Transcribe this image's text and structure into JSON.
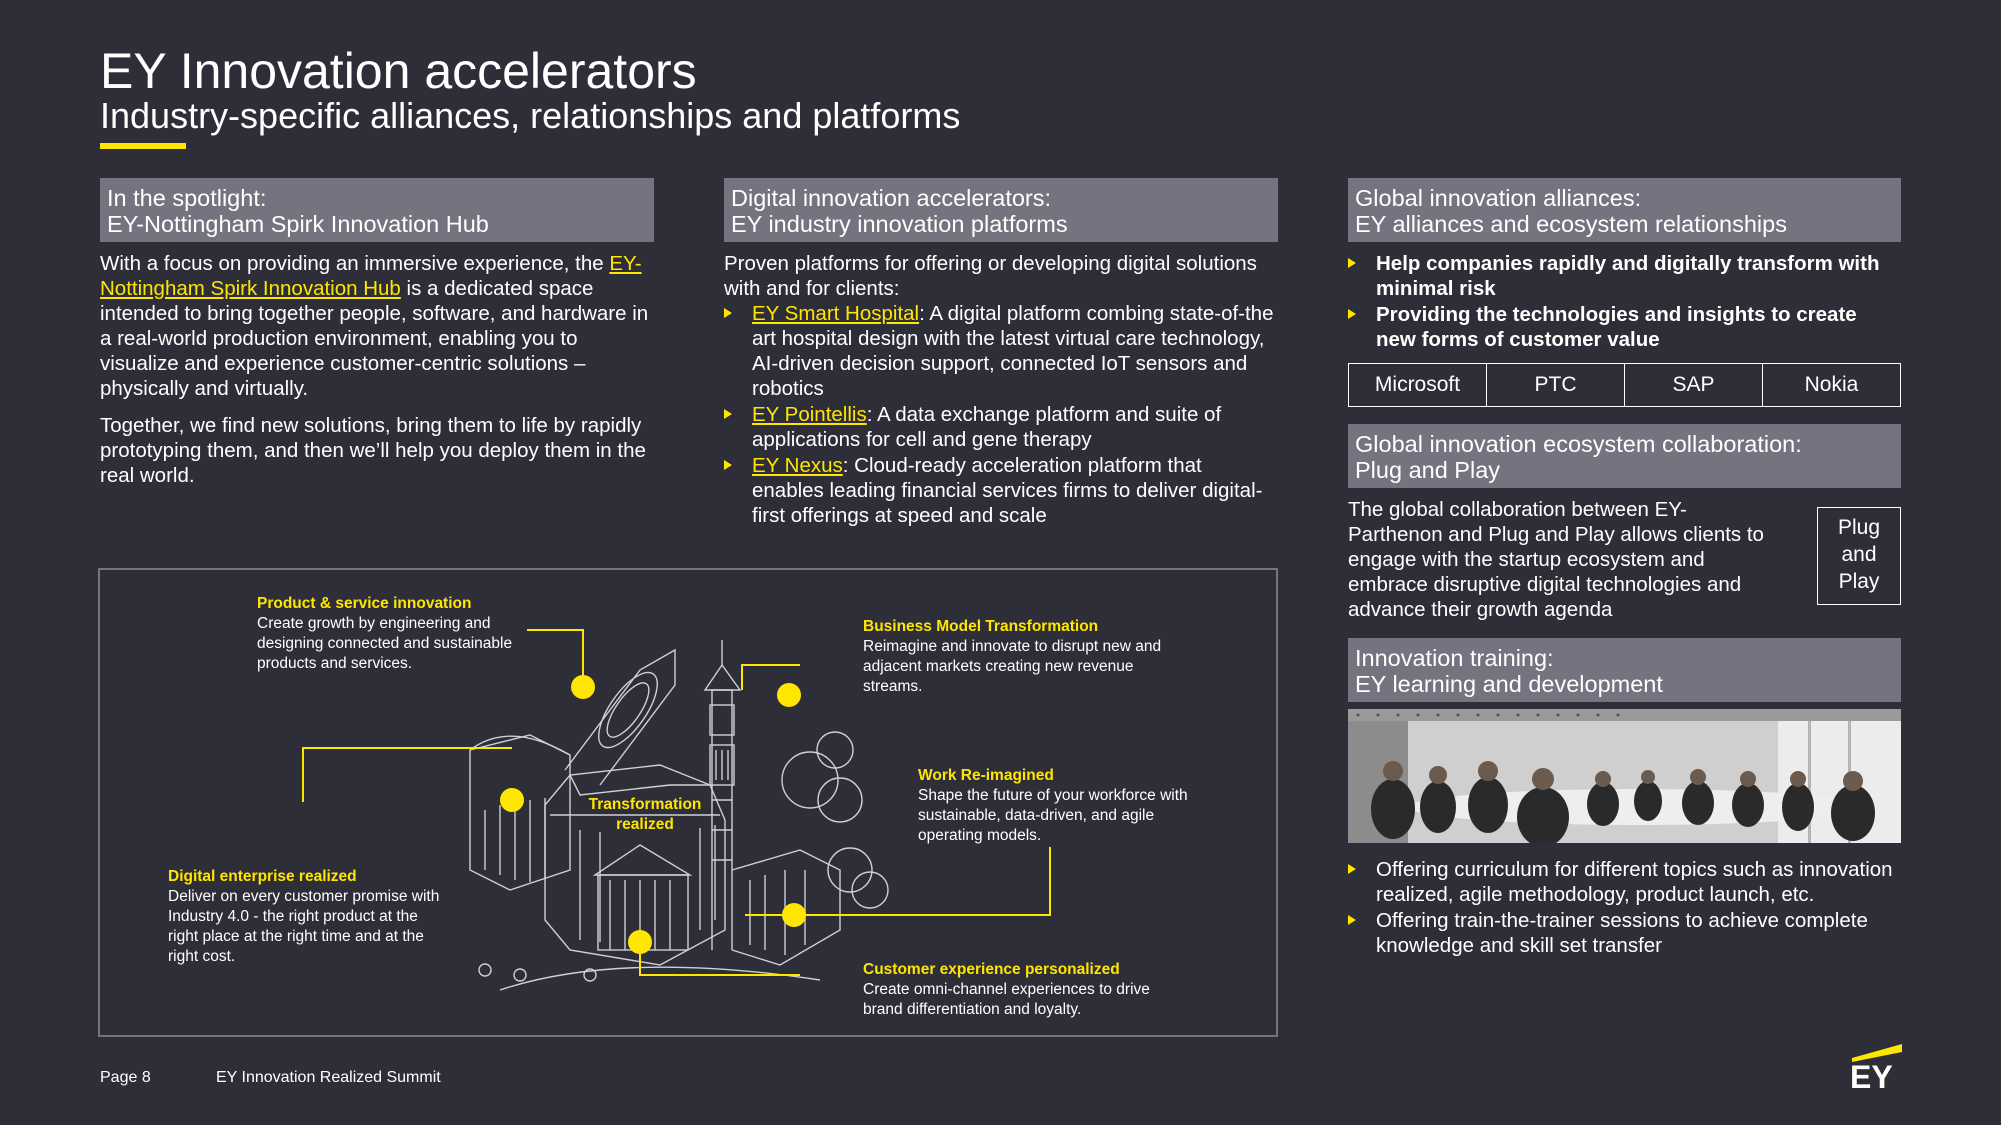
{
  "header": {
    "title": "EY Innovation accelerators",
    "subtitle": "Industry-specific alliances, relationships and platforms"
  },
  "col1": {
    "head_line1": "In the spotlight:",
    "head_line2": "EY-Nottingham Spirk Innovation Hub",
    "p1_pre": "With a focus on providing an immersive experience, the ",
    "p1_link": "EY-Nottingham Spirk Innovation Hub",
    "p1_post": " is a dedicated space intended to bring together people, software, and hardware in a real-world production environment, enabling you to visualize and experience customer-centric solutions – physically and virtually.",
    "p2": "Together, we find new solutions, bring them to life by rapidly prototyping them, and then we’ll help you deploy them in the real world."
  },
  "col2": {
    "head_line1": "Digital innovation accelerators:",
    "head_line2": "EY industry innovation platforms",
    "intro": "Proven platforms for offering or developing digital solutions with and for clients:",
    "items": [
      {
        "link": "EY Smart Hospital",
        "text": ": A digital platform combing state-of-the art hospital design with the latest virtual care technology, AI-driven decision support, connected IoT sensors and robotics"
      },
      {
        "link": "EY Pointellis",
        "text": ": A data exchange platform and suite of applications for cell and gene therapy"
      },
      {
        "link": "EY Nexus",
        "text": ": Cloud-ready acceleration platform that enables leading financial services firms to deliver digital-first offerings at speed and scale"
      }
    ]
  },
  "col3": {
    "alliances": {
      "head_line1": "Global innovation alliances:",
      "head_line2": "EY alliances and ecosystem relationships",
      "bullets": [
        "Help companies rapidly and digitally transform with minimal risk",
        "Providing the technologies and insights to create new forms of customer value"
      ],
      "partners": [
        "Microsoft",
        "PTC",
        "SAP",
        "Nokia"
      ]
    },
    "ecosystem": {
      "head_line1": "Global innovation ecosystem collaboration:",
      "head_line2": "Plug and Play",
      "text": "The global collaboration between EY-Parthenon and Plug and Play allows clients to engage with the startup ecosystem and embrace disruptive digital technologies and advance their growth agenda",
      "box_line1": "Plug",
      "box_line2": "and",
      "box_line3": "Play"
    },
    "training": {
      "head_line1": "Innovation training:",
      "head_line2": "EY learning and development",
      "bullets": [
        "Offering curriculum for different topics such as innovation realized, agile methodology, product launch, etc.",
        "Offering train-the-trainer sessions to achieve complete knowledge and skill set transfer"
      ]
    }
  },
  "diagram": {
    "center_line1": "Transformation",
    "center_line2": "realized",
    "labels": [
      {
        "head": "Product & service innovation",
        "text": "Create growth by engineering and designing connected and sustainable products and services."
      },
      {
        "head": "Business Model Transformation",
        "text": "Reimagine and innovate to disrupt new and adjacent markets creating new revenue streams."
      },
      {
        "head": "Work Re-imagined",
        "text": "Shape the future of your workforce with sustainable, data-driven, and agile operating models."
      },
      {
        "head": "Digital enterprise realized",
        "text": "Deliver on every customer promise with Industry 4.0 - the right product at the right place at the right time and at the right cost."
      },
      {
        "head": "Customer experience personalized",
        "text": "Create omni-channel experiences to drive brand differentiation and loyalty."
      }
    ]
  },
  "footer": {
    "page": "Page 8",
    "event": "EY Innovation Realized Summit",
    "logo_text": "EY"
  },
  "colors": {
    "background": "#2e2e38",
    "accent": "#ffe600",
    "header_bar": "#747480"
  }
}
